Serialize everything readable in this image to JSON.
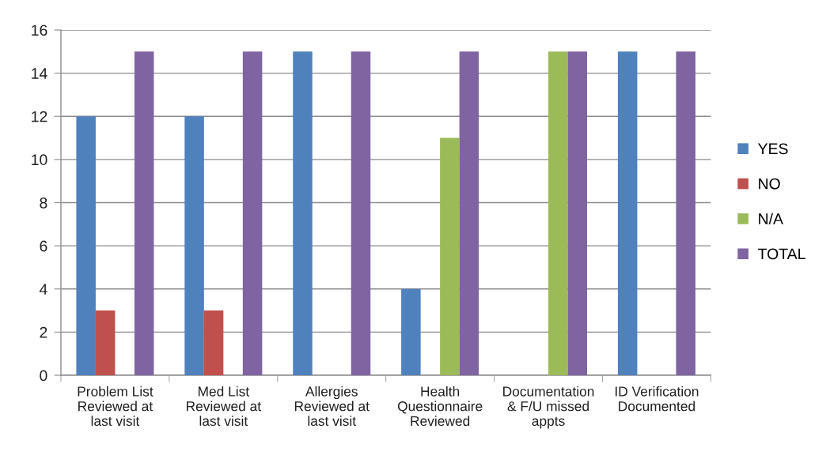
{
  "chart_data": {
    "type": "bar",
    "categories": [
      "Problem List\nReviewed at\nlast visit",
      "Med List\nReviewed at\nlast visit",
      "Allergies\nReviewed at\nlast visit",
      "Health\nQuestionnaire\nReviewed",
      "Documentation\n& F/U missed\nappts",
      "ID Verification\nDocumented"
    ],
    "series": [
      {
        "name": "YES",
        "color": "#4f81bd",
        "values": [
          12,
          12,
          15,
          4,
          null,
          15
        ]
      },
      {
        "name": "NO",
        "color": "#c0504d",
        "values": [
          3,
          3,
          null,
          null,
          null,
          null
        ]
      },
      {
        "name": "N/A",
        "color": "#9bbb59",
        "values": [
          null,
          null,
          null,
          11,
          15,
          null
        ]
      },
      {
        "name": "TOTAL",
        "color": "#8064a2",
        "values": [
          15,
          15,
          15,
          15,
          15,
          15
        ]
      }
    ],
    "ylim": [
      0,
      16
    ],
    "yticks": [
      0,
      2,
      4,
      6,
      8,
      10,
      12,
      14,
      16
    ],
    "grid": "y",
    "legend": "right"
  }
}
